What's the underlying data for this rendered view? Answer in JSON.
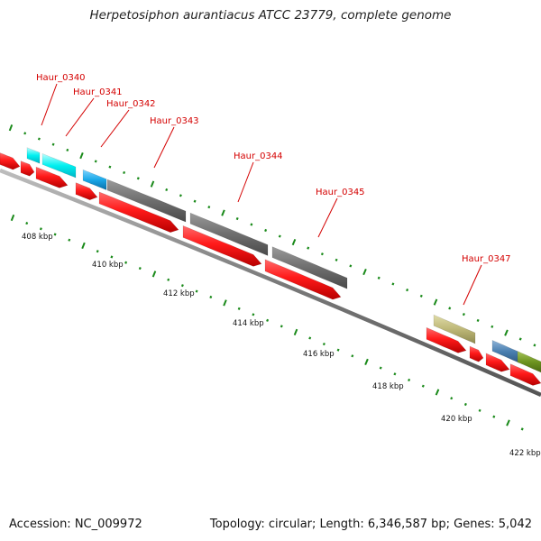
{
  "title": "Herpetosiphon aurantiacus ATCC 23779, complete genome",
  "footer": {
    "accession": "Accession: NC_009972",
    "stats": "Topology: circular; Length: 6,346,587 bp; Genes: 5,042"
  },
  "colors": {
    "cds": "#ff1a1a",
    "backbone": "#808080",
    "tick": "#1a8a1a",
    "label": "#d40000"
  },
  "scale_labels": [
    "408 kbp",
    "410 kbp",
    "412 kbp",
    "414 kbp",
    "416 kbp",
    "418 kbp",
    "420 kbp",
    "422 kbp"
  ],
  "gene_labels": [
    "Haur_0340",
    "Haur_0341",
    "Haur_0342",
    "Haur_0343",
    "Haur_0344",
    "Haur_0345",
    "Haur_0347"
  ]
}
